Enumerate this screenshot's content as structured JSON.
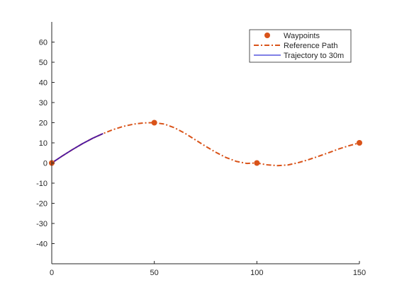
{
  "colors": {
    "waypoints": "#d95319",
    "reference_path": "#d95319",
    "trajectory": "#0000cc",
    "trajectory_overlap": "#7e2f8e",
    "axes": "#262626",
    "background": "#ffffff"
  },
  "chart_data": {
    "type": "line",
    "grid": false,
    "legend_position": "top-right",
    "xlim": [
      0,
      150
    ],
    "ylim": [
      -50,
      70
    ],
    "xticks": [
      0,
      50,
      100,
      150
    ],
    "yticks": [
      -40,
      -30,
      -20,
      -10,
      0,
      10,
      20,
      30,
      40,
      50,
      60
    ],
    "series": [
      {
        "name": "Waypoints",
        "kind": "markers",
        "x": [
          0,
          50,
          100,
          150
        ],
        "y": [
          0,
          20,
          0,
          10
        ]
      },
      {
        "name": "Reference Path",
        "kind": "dash-dot line",
        "x": [
          0,
          5,
          10,
          15,
          20,
          25,
          30,
          35,
          40,
          45,
          50,
          55,
          60,
          65,
          70,
          75,
          80,
          85,
          90,
          95,
          100,
          105,
          110,
          115,
          120,
          125,
          130,
          135,
          140,
          145,
          150
        ],
        "y": [
          0,
          3.4,
          6.6,
          9.6,
          12.3,
          14.6,
          16.6,
          18.2,
          19.3,
          19.9,
          20.0,
          19.3,
          17.4,
          14.7,
          11.5,
          8.3,
          5.3,
          2.7,
          0.8,
          -0.2,
          0,
          -0.9,
          -1.3,
          -1.0,
          0.1,
          1.6,
          3.3,
          5.1,
          7.0,
          8.6,
          10.0
        ]
      },
      {
        "name": "Trajectory to 30m",
        "kind": "solid line",
        "x": [
          0,
          5,
          10,
          15,
          20,
          25
        ],
        "y": [
          0,
          3.4,
          6.6,
          9.6,
          12.3,
          14.6
        ]
      }
    ]
  }
}
